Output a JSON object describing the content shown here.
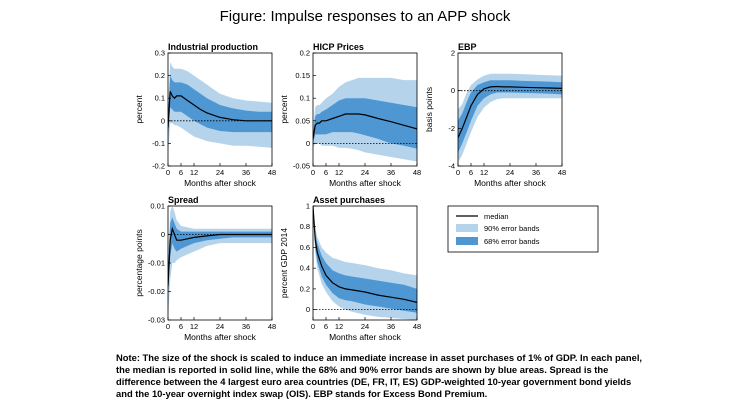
{
  "figure_title": "Figure: Impulse responses to an APP shock",
  "note": "Note: The size of the shock is scaled to induce an immediate increase in asset purchases of 1% of GDP. In each panel,  the median is reported in solid line, while the 68% and 90% error bands are shown by  blue areas. Spread is the difference between the 4 largest euro area countries (DE, FR,  IT, ES) GDP-weighted  10-year government bond yields and the 10-year overnight index swap (OIS). EBP stands for Excess Bond Premium.",
  "legend": {
    "median": "median",
    "band90": "90% error bands",
    "band68": "68% error bands"
  },
  "colors": {
    "band90": "#b5d4ec",
    "band68": "#4f97d3",
    "median": "#000000"
  },
  "chart_data": [
    {
      "type": "line",
      "title": "Industrial production",
      "xlabel": "Months after shock",
      "ylabel": "percent",
      "xlim": [
        0,
        48
      ],
      "ylim": [
        -0.2,
        0.3
      ],
      "xticks": [
        0,
        6,
        12,
        24,
        36,
        48
      ],
      "yticks": [
        -0.2,
        -0.1,
        0,
        0.1,
        0.2,
        0.3
      ],
      "ytick_labels": [
        "-0.2",
        "-0.1",
        "0",
        "0.1",
        "0.2",
        "0.3"
      ],
      "zero_line": true,
      "x": [
        0,
        1,
        2,
        3,
        4,
        6,
        9,
        12,
        15,
        18,
        24,
        30,
        36,
        42,
        48
      ],
      "median": [
        -0.03,
        0.13,
        0.11,
        0.1,
        0.11,
        0.11,
        0.09,
        0.07,
        0.05,
        0.035,
        0.015,
        0.005,
        0.0,
        0.0,
        0.0
      ],
      "band68_upper": [
        0.02,
        0.2,
        0.18,
        0.17,
        0.17,
        0.17,
        0.16,
        0.14,
        0.12,
        0.1,
        0.07,
        0.055,
        0.045,
        0.04,
        0.04
      ],
      "band68_lower": [
        -0.08,
        0.06,
        0.05,
        0.04,
        0.04,
        0.04,
        0.02,
        0.0,
        -0.015,
        -0.03,
        -0.045,
        -0.05,
        -0.05,
        -0.05,
        -0.05
      ],
      "band90_upper": [
        0.06,
        0.26,
        0.24,
        0.23,
        0.23,
        0.23,
        0.22,
        0.2,
        0.18,
        0.16,
        0.12,
        0.1,
        0.09,
        0.085,
        0.08
      ],
      "band90_lower": [
        -0.15,
        -0.01,
        -0.01,
        -0.02,
        -0.02,
        -0.03,
        -0.05,
        -0.07,
        -0.08,
        -0.09,
        -0.1,
        -0.11,
        -0.11,
        -0.115,
        -0.12
      ]
    },
    {
      "type": "line",
      "title": "HICP Prices",
      "xlabel": "Months after shock",
      "ylabel": "percent",
      "xlim": [
        0,
        48
      ],
      "ylim": [
        -0.05,
        0.2
      ],
      "xticks": [
        0,
        6,
        12,
        24,
        36,
        48
      ],
      "yticks": [
        -0.05,
        0,
        0.05,
        0.1,
        0.15,
        0.2
      ],
      "ytick_labels": [
        "-0.05",
        "0",
        "0.05",
        "0.1",
        "0.15",
        "0.2"
      ],
      "zero_line": true,
      "x": [
        0,
        1,
        2,
        3,
        4,
        6,
        9,
        12,
        15,
        18,
        21,
        24,
        30,
        36,
        42,
        48
      ],
      "median": [
        0.01,
        0.04,
        0.045,
        0.045,
        0.05,
        0.05,
        0.055,
        0.06,
        0.065,
        0.065,
        0.065,
        0.063,
        0.055,
        0.048,
        0.04,
        0.032
      ],
      "band68_upper": [
        0.02,
        0.06,
        0.065,
        0.065,
        0.07,
        0.075,
        0.085,
        0.095,
        0.1,
        0.1,
        0.1,
        0.1,
        0.095,
        0.09,
        0.085,
        0.08
      ],
      "band68_lower": [
        0.0,
        0.02,
        0.02,
        0.02,
        0.02,
        0.02,
        0.025,
        0.025,
        0.025,
        0.025,
        0.022,
        0.018,
        0.01,
        0.0,
        -0.005,
        -0.012
      ],
      "band90_upper": [
        0.03,
        0.08,
        0.085,
        0.085,
        0.09,
        0.1,
        0.11,
        0.125,
        0.135,
        0.14,
        0.145,
        0.145,
        0.145,
        0.145,
        0.14,
        0.14
      ],
      "band90_lower": [
        -0.01,
        0.0,
        0.0,
        0.0,
        -0.005,
        -0.005,
        -0.005,
        -0.01,
        -0.01,
        -0.012,
        -0.015,
        -0.02,
        -0.025,
        -0.03,
        -0.035,
        -0.04
      ]
    },
    {
      "type": "line",
      "title": "EBP",
      "xlabel": "Months after shock",
      "ylabel": "basis points",
      "xlim": [
        0,
        48
      ],
      "ylim": [
        -4,
        2
      ],
      "xticks": [
        0,
        6,
        12,
        24,
        36,
        48
      ],
      "yticks": [
        -4,
        -2,
        0,
        2
      ],
      "ytick_labels": [
        "-4",
        "-2",
        "0",
        "2"
      ],
      "zero_line": true,
      "x": [
        0,
        2,
        4,
        6,
        9,
        12,
        15,
        18,
        21,
        24,
        30,
        36,
        42,
        48
      ],
      "median": [
        -2.5,
        -2.0,
        -1.4,
        -0.8,
        -0.2,
        0.1,
        0.2,
        0.22,
        0.2,
        0.2,
        0.18,
        0.16,
        0.14,
        0.12
      ],
      "band68_upper": [
        -1.6,
        -1.2,
        -0.6,
        -0.1,
        0.3,
        0.45,
        0.55,
        0.55,
        0.55,
        0.55,
        0.52,
        0.5,
        0.48,
        0.45
      ],
      "band68_lower": [
        -3.3,
        -2.8,
        -2.2,
        -1.6,
        -0.8,
        -0.4,
        -0.2,
        -0.1,
        -0.1,
        -0.1,
        -0.12,
        -0.14,
        -0.16,
        -0.2
      ],
      "band90_upper": [
        -1.0,
        -0.7,
        -0.1,
        0.3,
        0.6,
        0.8,
        0.9,
        0.9,
        0.9,
        0.9,
        0.88,
        0.85,
        0.82,
        0.8
      ],
      "band90_lower": [
        -3.8,
        -3.4,
        -2.8,
        -2.2,
        -1.4,
        -0.9,
        -0.6,
        -0.45,
        -0.4,
        -0.4,
        -0.4,
        -0.4,
        -0.4,
        -0.4
      ]
    },
    {
      "type": "line",
      "title": "Spread",
      "xlabel": "Months after shock",
      "ylabel": "percentage points",
      "xlim": [
        0,
        48
      ],
      "ylim": [
        -0.03,
        0.01
      ],
      "xticks": [
        0,
        6,
        12,
        24,
        36,
        48
      ],
      "yticks": [
        -0.03,
        -0.02,
        -0.01,
        0,
        0.01
      ],
      "ytick_labels": [
        "-0.03",
        "-0.02",
        "-0.01",
        "0",
        "0.01"
      ],
      "zero_line": true,
      "x": [
        0,
        1,
        2,
        3,
        4,
        6,
        9,
        12,
        18,
        24,
        30,
        36,
        42,
        48
      ],
      "median": [
        -0.018,
        -0.002,
        0.002,
        0.0,
        -0.002,
        -0.002,
        -0.0015,
        -0.001,
        -0.0005,
        0.0,
        0.0,
        0.0,
        0.0,
        0.0
      ],
      "band68_upper": [
        -0.014,
        0.004,
        0.006,
        0.004,
        0.002,
        0.001,
        0.001,
        0.001,
        0.001,
        0.001,
        0.001,
        0.001,
        0.001,
        0.001
      ],
      "band68_lower": [
        -0.022,
        -0.008,
        -0.003,
        -0.005,
        -0.006,
        -0.005,
        -0.004,
        -0.003,
        -0.002,
        -0.0015,
        -0.001,
        -0.001,
        -0.001,
        -0.001
      ],
      "band90_upper": [
        -0.01,
        0.008,
        0.01,
        0.008,
        0.005,
        0.003,
        0.0025,
        0.002,
        0.002,
        0.002,
        0.002,
        0.002,
        0.002,
        0.002
      ],
      "band90_lower": [
        -0.029,
        -0.016,
        -0.01,
        -0.01,
        -0.009,
        -0.008,
        -0.007,
        -0.006,
        -0.004,
        -0.003,
        -0.003,
        -0.003,
        -0.003,
        -0.003
      ]
    },
    {
      "type": "line",
      "title": "Asset purchases",
      "xlabel": "Months after shock",
      "ylabel": "percent GDP 2014",
      "xlim": [
        0,
        48
      ],
      "ylim": [
        -0.1,
        1
      ],
      "xticks": [
        0,
        6,
        12,
        24,
        36,
        48
      ],
      "yticks": [
        0,
        0.2,
        0.4,
        0.6,
        0.8,
        1
      ],
      "ytick_labels": [
        "0",
        "0.2",
        "0.4",
        "0.6",
        "0.8",
        "1"
      ],
      "zero_line": true,
      "x": [
        0,
        1,
        2,
        4,
        6,
        9,
        12,
        15,
        18,
        24,
        30,
        36,
        42,
        48
      ],
      "median": [
        1.0,
        0.68,
        0.55,
        0.42,
        0.33,
        0.26,
        0.22,
        0.2,
        0.19,
        0.17,
        0.14,
        0.12,
        0.1,
        0.07
      ],
      "band68_upper": [
        1.0,
        0.75,
        0.64,
        0.52,
        0.45,
        0.38,
        0.35,
        0.33,
        0.32,
        0.3,
        0.28,
        0.26,
        0.24,
        0.2
      ],
      "band68_lower": [
        1.0,
        0.6,
        0.46,
        0.32,
        0.24,
        0.16,
        0.11,
        0.09,
        0.08,
        0.05,
        0.03,
        0.01,
        -0.01,
        -0.03
      ],
      "band90_upper": [
        1.0,
        0.8,
        0.7,
        0.6,
        0.55,
        0.5,
        0.48,
        0.46,
        0.45,
        0.43,
        0.4,
        0.38,
        0.35,
        0.33
      ],
      "band90_lower": [
        1.0,
        0.55,
        0.4,
        0.25,
        0.17,
        0.08,
        0.03,
        0.0,
        -0.02,
        -0.05,
        -0.07,
        -0.08,
        -0.09,
        -0.1
      ]
    }
  ]
}
